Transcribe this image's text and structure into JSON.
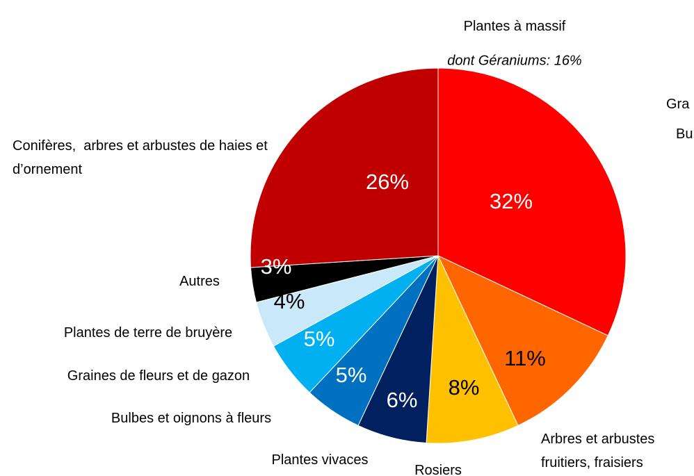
{
  "chart_data": {
    "type": "pie",
    "annotation": "dont Géraniums: 16%",
    "categories": [
      "Plantes à massif",
      "Arbres et arbustes fruitiers, fraisiers",
      "Rosiers",
      "Plantes vivaces",
      "Bulbes et oignons à fleurs",
      "Graines de fleurs et de gazon",
      "Plantes de terre de bruyère",
      "Autres",
      "Conifères,  arbres et arbustes de haies et d’ornement"
    ],
    "values": [
      32,
      11,
      8,
      6,
      5,
      5,
      4,
      3,
      26
    ],
    "value_labels": [
      "32%",
      "11%",
      "8%",
      "6%",
      "5%",
      "5%",
      "4%",
      "3%",
      "26%"
    ],
    "colors": [
      "#ff0000",
      "#ff6600",
      "#ffc000",
      "#002060",
      "#0070c0",
      "#00b0f0",
      "#c9e9fa",
      "#000000",
      "#c00000"
    ],
    "cropped_labels": [
      "Gra",
      "Bu"
    ]
  }
}
